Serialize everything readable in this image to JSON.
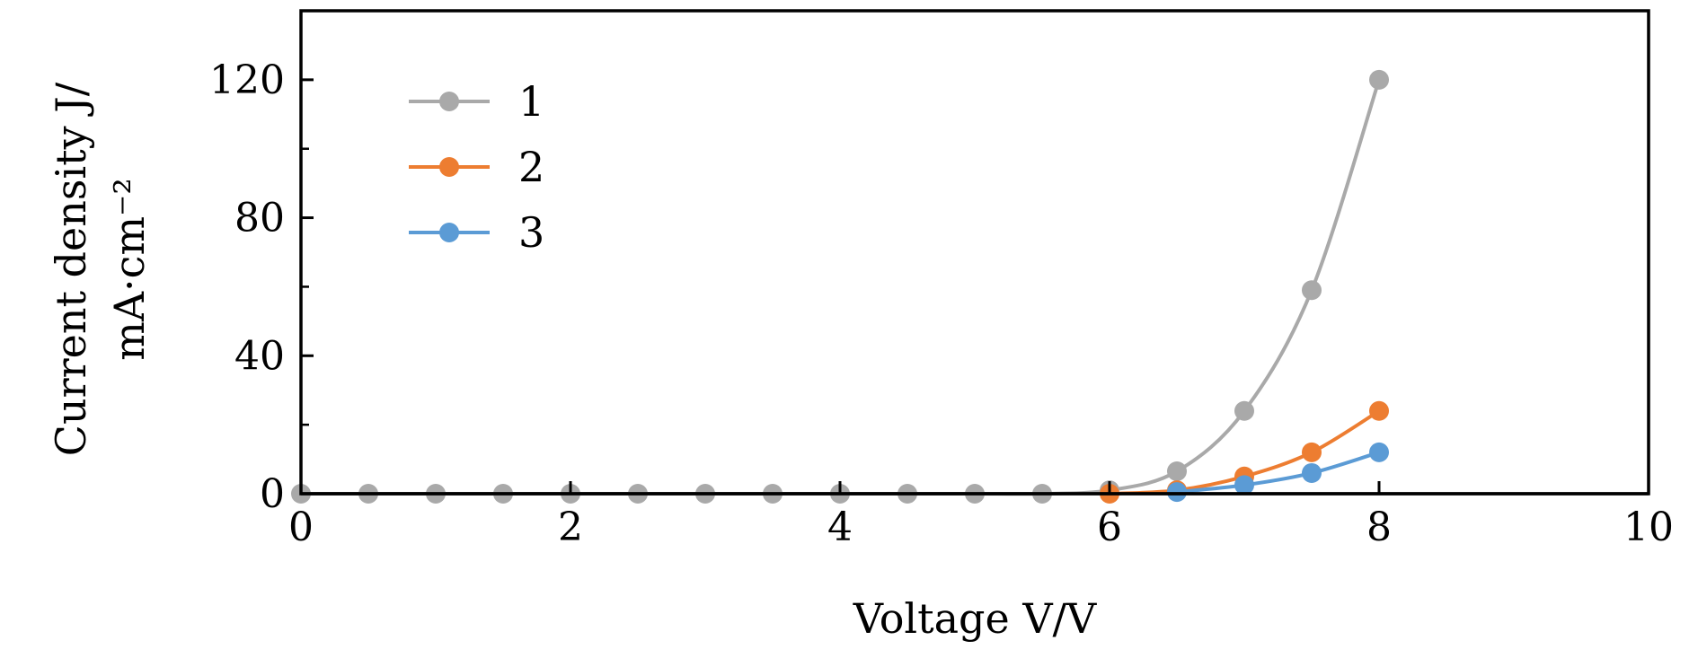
{
  "chart_data": {
    "type": "line",
    "xlabel": "Voltage V/V",
    "ylabel_line1": "Current density J/",
    "ylabel_line2": "mA·cm⁻²",
    "xlim": [
      0,
      10
    ],
    "ylim": [
      0,
      140
    ],
    "xticks": [
      0,
      2,
      4,
      6,
      8,
      10
    ],
    "yticks": [
      0,
      40,
      80,
      120
    ],
    "yminor": [
      20,
      60,
      100
    ],
    "grid": false,
    "legend_position": "top-left",
    "series": [
      {
        "name": "1",
        "color": "#a9a9a9",
        "x": [
          0,
          0.5,
          1,
          1.5,
          2,
          2.5,
          3,
          3.5,
          4,
          4.5,
          5,
          5.5,
          6,
          6.5,
          7,
          7.5,
          8
        ],
        "y": [
          0,
          0,
          0,
          0,
          0,
          0,
          0,
          0,
          0,
          0,
          0,
          0,
          1,
          6.5,
          24,
          59,
          120
        ]
      },
      {
        "name": "2",
        "color": "#ed7d31",
        "x": [
          6,
          6.5,
          7,
          7.5,
          8
        ],
        "y": [
          0,
          1,
          5,
          12,
          24
        ]
      },
      {
        "name": "3",
        "color": "#5b9bd5",
        "x": [
          6.5,
          7,
          7.5,
          8
        ],
        "y": [
          0.5,
          2.5,
          6,
          12
        ]
      }
    ]
  }
}
